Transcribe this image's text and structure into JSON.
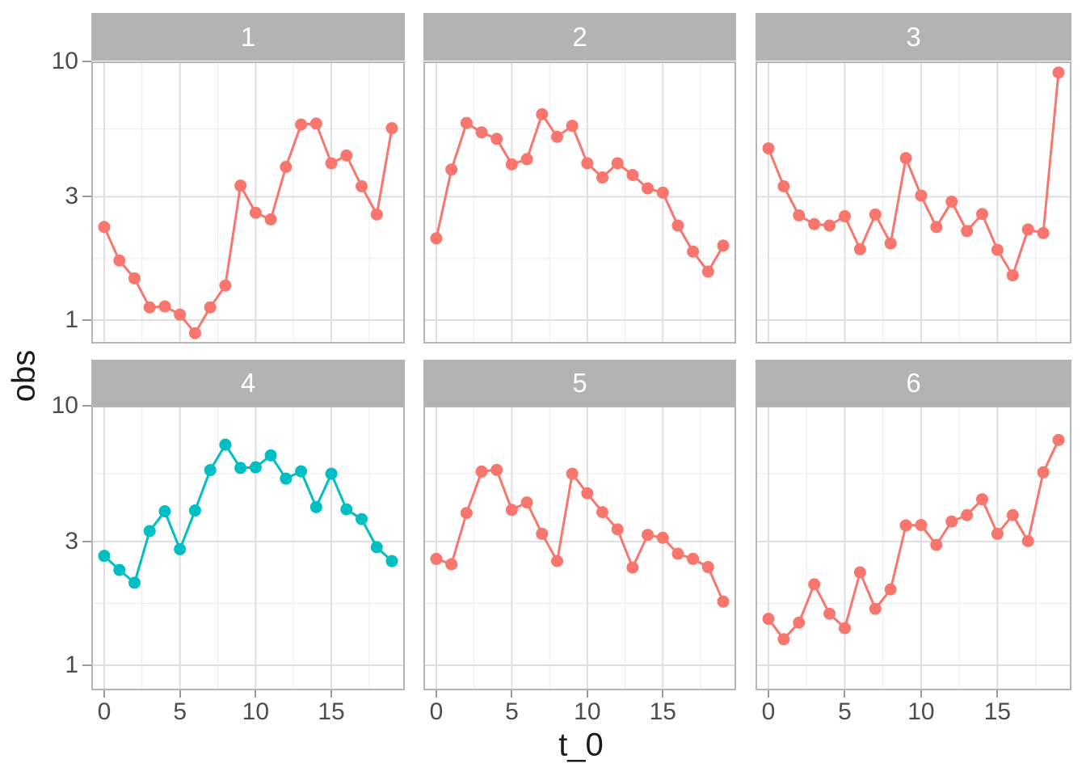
{
  "chart_data": {
    "type": "line",
    "title": "",
    "xlabel": "t_0",
    "ylabel": "obs",
    "facet_layout": "2 rows x 3 columns",
    "x_ticks": [
      "0",
      "5",
      "10",
      "15"
    ],
    "y_ticks": [
      "10",
      "3",
      "1"
    ],
    "x_tick_values": [
      0,
      5,
      10,
      15
    ],
    "y_tick_values": [
      10,
      3,
      1
    ],
    "x_minor_values": [
      2.5,
      7.5,
      12.5,
      17.5
    ],
    "y_minor_values": [
      5.48,
      1.73
    ],
    "y_scale": "log10",
    "ylim": [
      0.81,
      9.95
    ],
    "xlim": [
      -0.95,
      19.95
    ],
    "grid": "on",
    "legend": "none",
    "x": [
      0,
      1,
      2,
      3,
      4,
      5,
      6,
      7,
      8,
      9,
      10,
      11,
      12,
      13,
      14,
      15,
      16,
      17,
      18,
      19
    ],
    "series": [
      {
        "facet": "1",
        "color": "#F8766D",
        "values": [
          2.29,
          1.7,
          1.45,
          1.12,
          1.13,
          1.05,
          0.89,
          1.12,
          1.36,
          3.31,
          2.6,
          2.45,
          3.91,
          5.7,
          5.75,
          4.04,
          4.33,
          3.29,
          2.56,
          5.52
        ]
      },
      {
        "facet": "2",
        "color": "#F8766D",
        "values": [
          2.07,
          3.82,
          5.78,
          5.32,
          5.02,
          4.0,
          4.19,
          6.25,
          5.11,
          5.64,
          4.04,
          3.56,
          4.04,
          3.64,
          3.23,
          3.11,
          2.32,
          1.84,
          1.54,
          1.94
        ]
      },
      {
        "facet": "3",
        "color": "#F8766D",
        "values": [
          4.61,
          3.29,
          2.54,
          2.35,
          2.32,
          2.52,
          1.88,
          2.56,
          1.98,
          4.23,
          3.03,
          2.29,
          2.87,
          2.21,
          2.57,
          1.87,
          1.49,
          2.24,
          2.17,
          9.06
        ]
      },
      {
        "facet": "4",
        "color": "#00BFC4",
        "values": [
          2.64,
          2.33,
          2.08,
          3.29,
          3.92,
          2.8,
          3.95,
          5.65,
          7.08,
          5.76,
          5.79,
          6.44,
          5.24,
          5.59,
          4.07,
          5.47,
          3.99,
          3.66,
          2.85,
          2.52
        ]
      },
      {
        "facet": "5",
        "color": "#F8766D",
        "values": [
          2.57,
          2.45,
          3.86,
          5.58,
          5.66,
          3.97,
          4.24,
          3.21,
          2.52,
          5.47,
          4.6,
          3.89,
          3.34,
          2.38,
          3.18,
          3.1,
          2.69,
          2.57,
          2.39,
          1.76
        ]
      },
      {
        "facet": "6",
        "color": "#F8766D",
        "values": [
          1.51,
          1.26,
          1.46,
          2.05,
          1.58,
          1.39,
          2.28,
          1.65,
          1.96,
          3.46,
          3.47,
          2.91,
          3.58,
          3.79,
          4.36,
          3.21,
          3.79,
          3.01,
          5.54,
          7.38
        ]
      }
    ]
  },
  "style": {
    "series_color_default": "#F8766D",
    "series_color_highlight": "#00BFC4",
    "strip_background": "#B3B3B3",
    "strip_text_color": "#FFFFFF",
    "panel_border": "#B6B6B6",
    "grid_major": "#DFDFDF",
    "grid_minor": "#ECECEC",
    "axis_tick_color": "#999999",
    "axis_text_color": "#4D4D4D",
    "axis_title_color": "#1A1A1A",
    "background": "#FFFFFF"
  }
}
